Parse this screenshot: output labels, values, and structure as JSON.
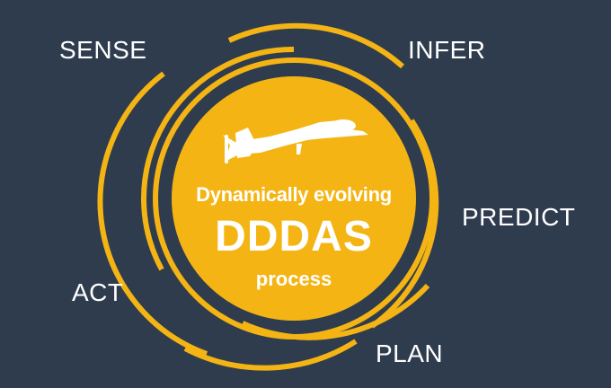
{
  "colors": {
    "background": "#2f3c4e",
    "accent": "#f4b414",
    "text": "#ffffff"
  },
  "stages": {
    "sense": "SENSE",
    "infer": "INFER",
    "predict": "PREDICT",
    "plan": "PLAN",
    "act": "ACT"
  },
  "center": {
    "subtitle": "Dynamically evolving",
    "title": "DDDAS",
    "caption": "process",
    "icon": "drone-icon"
  }
}
